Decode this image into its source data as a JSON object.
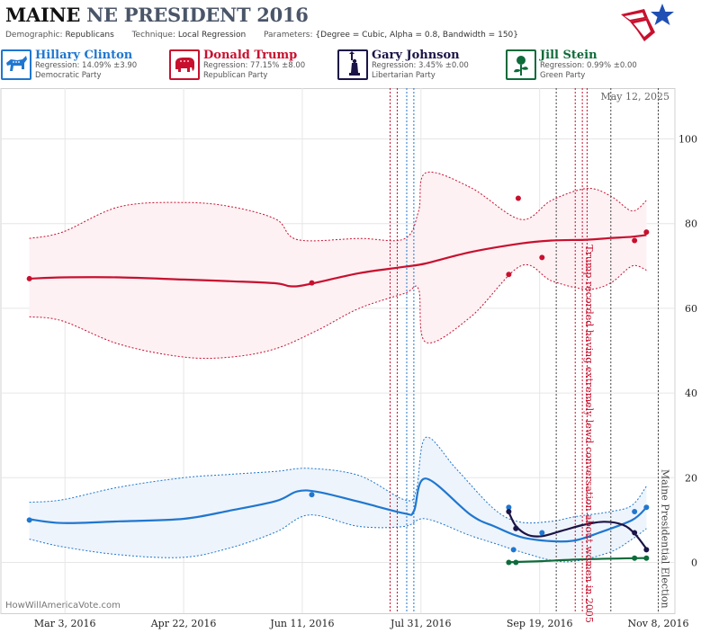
{
  "header": {
    "title_state": "MAINE",
    "title_rest": "NE PRESIDENT 2016",
    "demographic_label": "Demographic:",
    "demographic_value": "Republicans",
    "technique_label": "Technique:",
    "technique_value": "Local Regression",
    "parameters_label": "Parameters:",
    "parameters_value": "{Degree = Cubic, Alpha = 0.8, Bandwidth = 150}"
  },
  "candidates": [
    {
      "name": "Hillary Clinton",
      "regression": "Regression: 14.09% ±3.90",
      "party": "Democratic Party",
      "color": "#1f77d0",
      "icon": "donkey-icon"
    },
    {
      "name": "Donald Trump",
      "regression": "Regression: 77.15% ±8.00",
      "party": "Republican Party",
      "color": "#c8102e",
      "icon": "elephant-icon"
    },
    {
      "name": "Gary Johnson",
      "regression": "Regression: 3.45% ±0.00",
      "party": "Libertarian Party",
      "color": "#1b1446",
      "icon": "liberty-icon"
    },
    {
      "name": "Jill Stein",
      "regression": "Regression: 0.99% ±0.00",
      "party": "Green Party",
      "color": "#0e6b3a",
      "icon": "rose-icon"
    }
  ],
  "chart_data": {
    "type": "line",
    "date_stamp": "May 12, 2025",
    "watermark": "HowWillAmericaVote.com",
    "x_range": [
      "2016-02-05",
      "2016-11-15"
    ],
    "y_range": [
      -12,
      112
    ],
    "y_ticks": [
      0,
      20,
      40,
      60,
      80,
      100
    ],
    "x_ticks": [
      {
        "date": "2016-03-03",
        "label": "Mar 3, 2016"
      },
      {
        "date": "2016-04-22",
        "label": "Apr 22, 2016"
      },
      {
        "date": "2016-06-11",
        "label": "Jun 11, 2016"
      },
      {
        "date": "2016-07-31",
        "label": "Jul 31, 2016"
      },
      {
        "date": "2016-09-19",
        "label": "Sep 19, 2016"
      },
      {
        "date": "2016-11-08",
        "label": "Nov 8, 2016"
      }
    ],
    "event_lines": [
      {
        "date": "2016-07-18",
        "color": "#c8102e"
      },
      {
        "date": "2016-07-21",
        "color": "#c8102e"
      },
      {
        "date": "2016-07-25",
        "color": "#1f77d0"
      },
      {
        "date": "2016-07-28",
        "color": "#1f77d0"
      },
      {
        "date": "2016-09-26",
        "color": "#444444"
      },
      {
        "date": "2016-10-04",
        "color": "#c8102e"
      },
      {
        "date": "2016-10-07",
        "color": "#c8102e"
      },
      {
        "date": "2016-10-09",
        "color": "#c8102e"
      },
      {
        "date": "2016-10-19",
        "color": "#444444"
      },
      {
        "date": "2016-11-08",
        "color": "#444444"
      }
    ],
    "annotations": [
      {
        "date": "2016-10-07",
        "text": "Trump recorded having extremely lewd conversation about women in 2005",
        "color": "#c8102e",
        "y": 75
      },
      {
        "date": "2016-11-08",
        "text": "Maine Presidential Election",
        "color": "#444444",
        "y": 22
      }
    ],
    "series": [
      {
        "name": "Hillary Clinton",
        "color": "#1f77d0",
        "band_color": "#eef4fb",
        "trend": [
          {
            "x": "2016-02-17",
            "y": 10.2
          },
          {
            "x": "2016-03-02",
            "y": 9.3
          },
          {
            "x": "2016-03-26",
            "y": 9.7
          },
          {
            "x": "2016-04-22",
            "y": 10.3
          },
          {
            "x": "2016-05-12",
            "y": 12.3
          },
          {
            "x": "2016-05-31",
            "y": 14.5
          },
          {
            "x": "2016-06-09",
            "y": 16.8
          },
          {
            "x": "2016-06-18",
            "y": 16.6
          },
          {
            "x": "2016-07-05",
            "y": 14.3
          },
          {
            "x": "2016-07-24",
            "y": 11.6
          },
          {
            "x": "2016-07-28",
            "y": 12.1
          },
          {
            "x": "2016-08-02",
            "y": 19.8
          },
          {
            "x": "2016-08-21",
            "y": 11.2
          },
          {
            "x": "2016-08-31",
            "y": 8.5
          },
          {
            "x": "2016-09-11",
            "y": 6.0
          },
          {
            "x": "2016-09-24",
            "y": 5.0
          },
          {
            "x": "2016-10-04",
            "y": 5.2
          },
          {
            "x": "2016-10-14",
            "y": 7.0
          },
          {
            "x": "2016-10-28",
            "y": 10.0
          },
          {
            "x": "2016-11-03",
            "y": 13.0
          }
        ],
        "band_upper": [
          {
            "x": "2016-02-17",
            "y": 14.2
          },
          {
            "x": "2016-03-02",
            "y": 14.8
          },
          {
            "x": "2016-03-26",
            "y": 17.8
          },
          {
            "x": "2016-04-22",
            "y": 20.0
          },
          {
            "x": "2016-05-12",
            "y": 20.8
          },
          {
            "x": "2016-05-31",
            "y": 21.5
          },
          {
            "x": "2016-06-14",
            "y": 22.2
          },
          {
            "x": "2016-07-05",
            "y": 20.5
          },
          {
            "x": "2016-07-24",
            "y": 14.8
          },
          {
            "x": "2016-07-29",
            "y": 17.0
          },
          {
            "x": "2016-08-02",
            "y": 29.5
          },
          {
            "x": "2016-08-15",
            "y": 22.0
          },
          {
            "x": "2016-08-31",
            "y": 12.5
          },
          {
            "x": "2016-09-11",
            "y": 9.5
          },
          {
            "x": "2016-09-24",
            "y": 9.7
          },
          {
            "x": "2016-10-04",
            "y": 10.8
          },
          {
            "x": "2016-10-19",
            "y": 12.0
          },
          {
            "x": "2016-10-28",
            "y": 13.5
          },
          {
            "x": "2016-11-03",
            "y": 18.0
          }
        ],
        "band_lower": [
          {
            "x": "2016-02-17",
            "y": 5.5
          },
          {
            "x": "2016-03-02",
            "y": 3.7
          },
          {
            "x": "2016-03-26",
            "y": 1.8
          },
          {
            "x": "2016-04-22",
            "y": 1.2
          },
          {
            "x": "2016-05-12",
            "y": 3.5
          },
          {
            "x": "2016-05-31",
            "y": 7.2
          },
          {
            "x": "2016-06-14",
            "y": 11.2
          },
          {
            "x": "2016-07-05",
            "y": 8.5
          },
          {
            "x": "2016-07-24",
            "y": 8.5
          },
          {
            "x": "2016-08-02",
            "y": 10.3
          },
          {
            "x": "2016-08-20",
            "y": 6.5
          },
          {
            "x": "2016-08-31",
            "y": 4.5
          },
          {
            "x": "2016-09-11",
            "y": 2.5
          },
          {
            "x": "2016-09-24",
            "y": 0.5
          },
          {
            "x": "2016-10-04",
            "y": 0.3
          },
          {
            "x": "2016-10-19",
            "y": 2.5
          },
          {
            "x": "2016-10-28",
            "y": 5.5
          },
          {
            "x": "2016-11-03",
            "y": 8.0
          }
        ],
        "points": [
          {
            "x": "2016-02-17",
            "y": 10
          },
          {
            "x": "2016-06-15",
            "y": 16
          },
          {
            "x": "2016-09-06",
            "y": 13
          },
          {
            "x": "2016-09-08",
            "y": 3
          },
          {
            "x": "2016-09-09",
            "y": 8
          },
          {
            "x": "2016-09-20",
            "y": 7
          },
          {
            "x": "2016-10-29",
            "y": 12
          },
          {
            "x": "2016-11-03",
            "y": 13
          }
        ]
      },
      {
        "name": "Donald Trump",
        "color": "#c8102e",
        "band_color": "#fdf1f4",
        "trend": [
          {
            "x": "2016-02-17",
            "y": 67
          },
          {
            "x": "2016-03-02",
            "y": 67.3
          },
          {
            "x": "2016-03-26",
            "y": 67.3
          },
          {
            "x": "2016-04-22",
            "y": 66.8
          },
          {
            "x": "2016-05-12",
            "y": 66.4
          },
          {
            "x": "2016-05-31",
            "y": 65.9
          },
          {
            "x": "2016-06-06",
            "y": 65.2
          },
          {
            "x": "2016-06-13",
            "y": 65.6
          },
          {
            "x": "2016-07-05",
            "y": 68.3
          },
          {
            "x": "2016-07-24",
            "y": 69.8
          },
          {
            "x": "2016-08-02",
            "y": 70.6
          },
          {
            "x": "2016-08-21",
            "y": 73.3
          },
          {
            "x": "2016-09-11",
            "y": 75.3
          },
          {
            "x": "2016-09-24",
            "y": 76
          },
          {
            "x": "2016-10-09",
            "y": 76.2
          },
          {
            "x": "2016-10-19",
            "y": 76.6
          },
          {
            "x": "2016-10-28",
            "y": 76.9
          },
          {
            "x": "2016-11-03",
            "y": 77.3
          }
        ],
        "band_upper": [
          {
            "x": "2016-02-17",
            "y": 76.5
          },
          {
            "x": "2016-03-02",
            "y": 78
          },
          {
            "x": "2016-03-26",
            "y": 84
          },
          {
            "x": "2016-04-22",
            "y": 85
          },
          {
            "x": "2016-05-12",
            "y": 84
          },
          {
            "x": "2016-05-31",
            "y": 81
          },
          {
            "x": "2016-06-09",
            "y": 76.2
          },
          {
            "x": "2016-07-05",
            "y": 76.5
          },
          {
            "x": "2016-07-24",
            "y": 76.4
          },
          {
            "x": "2016-07-30",
            "y": 83
          },
          {
            "x": "2016-08-02",
            "y": 92
          },
          {
            "x": "2016-08-21",
            "y": 88.5
          },
          {
            "x": "2016-09-11",
            "y": 81
          },
          {
            "x": "2016-09-24",
            "y": 85.5
          },
          {
            "x": "2016-10-09",
            "y": 88.3
          },
          {
            "x": "2016-10-19",
            "y": 86.5
          },
          {
            "x": "2016-10-28",
            "y": 83
          },
          {
            "x": "2016-11-03",
            "y": 85.5
          }
        ],
        "band_lower": [
          {
            "x": "2016-02-17",
            "y": 58
          },
          {
            "x": "2016-03-02",
            "y": 57
          },
          {
            "x": "2016-03-26",
            "y": 51.5
          },
          {
            "x": "2016-04-22",
            "y": 48.5
          },
          {
            "x": "2016-05-12",
            "y": 48.5
          },
          {
            "x": "2016-05-31",
            "y": 50.5
          },
          {
            "x": "2016-06-18",
            "y": 55
          },
          {
            "x": "2016-07-05",
            "y": 60
          },
          {
            "x": "2016-07-24",
            "y": 63.5
          },
          {
            "x": "2016-07-30",
            "y": 64.5
          },
          {
            "x": "2016-08-02",
            "y": 52
          },
          {
            "x": "2016-08-21",
            "y": 58
          },
          {
            "x": "2016-09-11",
            "y": 70
          },
          {
            "x": "2016-09-24",
            "y": 66.5
          },
          {
            "x": "2016-10-09",
            "y": 64.5
          },
          {
            "x": "2016-10-19",
            "y": 66
          },
          {
            "x": "2016-10-28",
            "y": 70
          },
          {
            "x": "2016-11-03",
            "y": 69
          }
        ],
        "points": [
          {
            "x": "2016-02-17",
            "y": 67
          },
          {
            "x": "2016-06-15",
            "y": 66
          },
          {
            "x": "2016-09-06",
            "y": 68
          },
          {
            "x": "2016-09-10",
            "y": 86
          },
          {
            "x": "2016-09-20",
            "y": 72
          },
          {
            "x": "2016-10-29",
            "y": 76
          },
          {
            "x": "2016-11-03",
            "y": 78
          }
        ]
      },
      {
        "name": "Gary Johnson",
        "color": "#1b1446",
        "trend": [
          {
            "x": "2016-09-06",
            "y": 11.8
          },
          {
            "x": "2016-09-09",
            "y": 8.6
          },
          {
            "x": "2016-09-14",
            "y": 6.5
          },
          {
            "x": "2016-09-20",
            "y": 6.2
          },
          {
            "x": "2016-09-28",
            "y": 7.4
          },
          {
            "x": "2016-10-07",
            "y": 8.8
          },
          {
            "x": "2016-10-16",
            "y": 9.6
          },
          {
            "x": "2016-10-24",
            "y": 8.9
          },
          {
            "x": "2016-10-29",
            "y": 6.8
          },
          {
            "x": "2016-11-03",
            "y": 3.2
          }
        ],
        "points": [
          {
            "x": "2016-09-06",
            "y": 12
          },
          {
            "x": "2016-09-09",
            "y": 8
          },
          {
            "x": "2016-10-29",
            "y": 7
          },
          {
            "x": "2016-11-03",
            "y": 3
          }
        ]
      },
      {
        "name": "Jill Stein",
        "color": "#0e6b3a",
        "trend": [
          {
            "x": "2016-09-06",
            "y": 0
          },
          {
            "x": "2016-09-09",
            "y": 0.1
          },
          {
            "x": "2016-09-20",
            "y": 0.3
          },
          {
            "x": "2016-10-06",
            "y": 0.7
          },
          {
            "x": "2016-10-29",
            "y": 1.0
          },
          {
            "x": "2016-11-03",
            "y": 1.0
          }
        ],
        "points": [
          {
            "x": "2016-09-06",
            "y": 0
          },
          {
            "x": "2016-09-09",
            "y": 0
          },
          {
            "x": "2016-10-29",
            "y": 1
          },
          {
            "x": "2016-11-03",
            "y": 1
          }
        ]
      }
    ]
  }
}
